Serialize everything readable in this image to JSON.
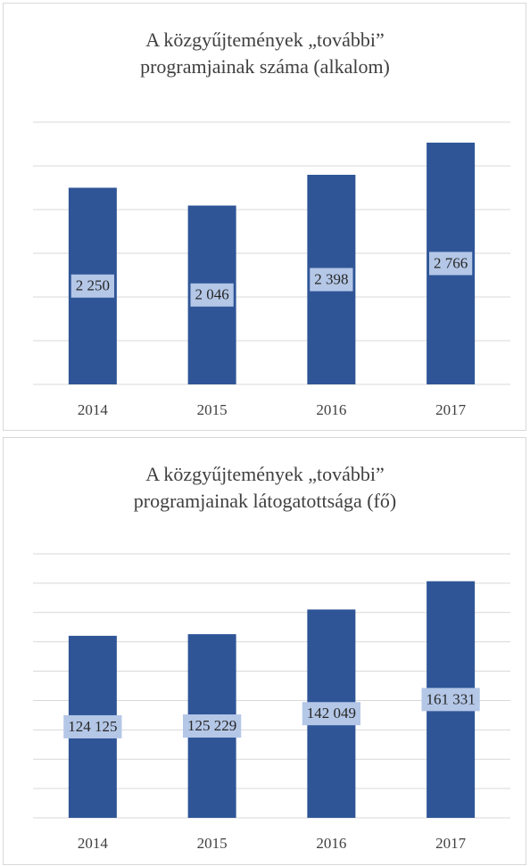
{
  "chart_data": [
    {
      "type": "bar",
      "title": [
        "A közgyűjtemények „további”",
        "programjainak  száma  (alkalom)"
      ],
      "categories": [
        "2014",
        "2015",
        "2016",
        "2017"
      ],
      "values": [
        2250,
        2046,
        2398,
        2766
      ],
      "value_labels": [
        "2 250",
        "2 046",
        "2 398",
        "2 766"
      ],
      "color": "#2f5597",
      "ylim": [
        0,
        3000
      ],
      "yticks": [
        0,
        500,
        1000,
        1500,
        2000,
        2500,
        3000
      ],
      "grid": true
    },
    {
      "type": "bar",
      "title": [
        "A közgyűjtemények  „további”",
        "programjainak  látogatottsága (fő)"
      ],
      "categories": [
        "2014",
        "2015",
        "2016",
        "2017"
      ],
      "values": [
        124125,
        125229,
        142049,
        161331
      ],
      "value_labels": [
        "124 125",
        "125 229",
        "142 049",
        "161 331"
      ],
      "color": "#2f5597",
      "ylim": [
        0,
        180000
      ],
      "yticks": [
        0,
        20000,
        40000,
        60000,
        80000,
        100000,
        120000,
        140000,
        160000,
        180000
      ],
      "grid": true
    }
  ]
}
